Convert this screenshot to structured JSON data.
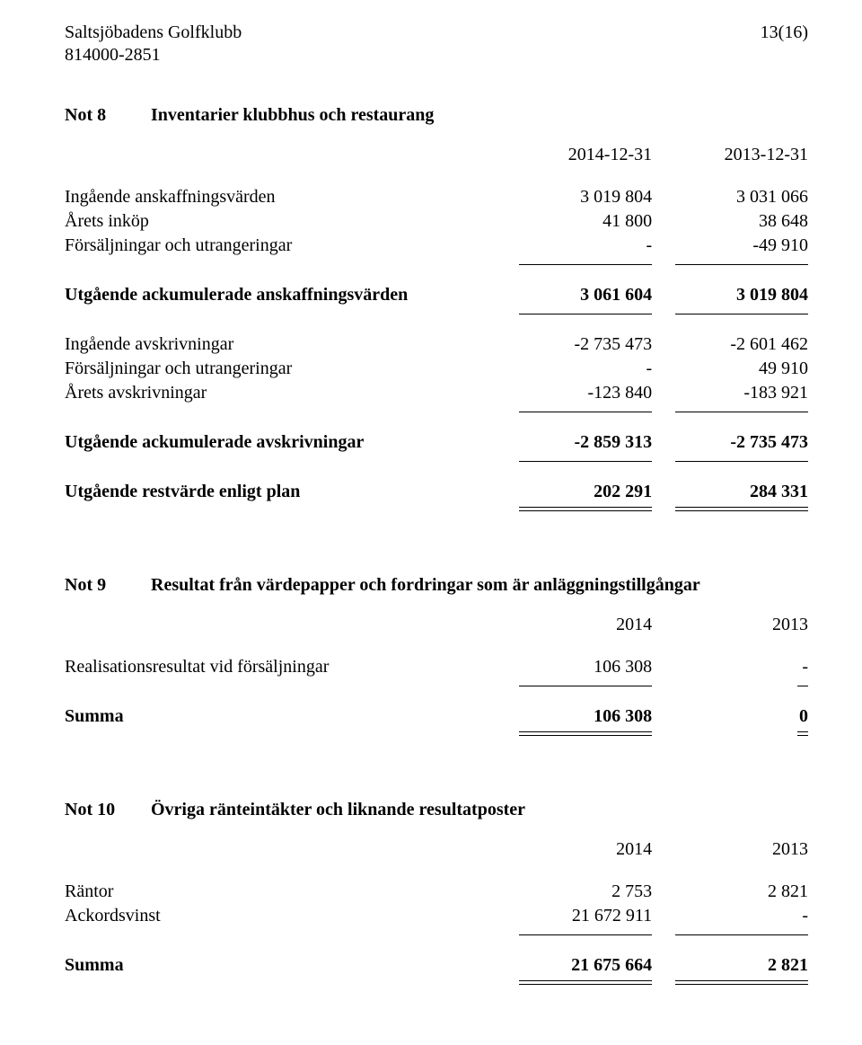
{
  "header": {
    "org_name": "Saltsjöbadens Golfklubb",
    "org_number": "814000-2851",
    "page_indicator": "13(16)"
  },
  "note8": {
    "num": "Not 8",
    "title": "Inventarier klubbhus och restaurang",
    "col1": "2014-12-31",
    "col2": "2013-12-31",
    "rows": {
      "r1_label": "Ingående anskaffningsvärden",
      "r1_c1": "3 019 804",
      "r1_c2": "3 031 066",
      "r2_label": "Årets inköp",
      "r2_c1": "41 800",
      "r2_c2": "38 648",
      "r3_label": "Försäljningar och utrangeringar",
      "r3_c1": "-",
      "r3_c2": "-49 910",
      "r4_label": "Utgående ackumulerade anskaffningsvärden",
      "r4_c1": "3 061 604",
      "r4_c2": "3 019 804",
      "r5_label": "Ingående avskrivningar",
      "r5_c1": "-2 735 473",
      "r5_c2": "-2 601 462",
      "r6_label": "Försäljningar och utrangeringar",
      "r6_c1": "-",
      "r6_c2": "49 910",
      "r7_label": "Årets avskrivningar",
      "r7_c1": "-123 840",
      "r7_c2": "-183 921",
      "r8_label": "Utgående ackumulerade avskrivningar",
      "r8_c1": "-2 859 313",
      "r8_c2": "-2 735 473",
      "r9_label": "Utgående restvärde enligt plan",
      "r9_c1": "202 291",
      "r9_c2": "284 331"
    }
  },
  "note9": {
    "num": "Not 9",
    "title": "Resultat från värdepapper och fordringar som är anläggningstillgångar",
    "col1": "2014",
    "col2": "2013",
    "rows": {
      "r1_label": "Realisationsresultat vid försäljningar",
      "r1_c1": "106 308",
      "r1_c2": "-",
      "r2_label": "Summa",
      "r2_c1": "106 308",
      "r2_c2": "0"
    }
  },
  "note10": {
    "num": "Not 10",
    "title": "Övriga ränteintäkter och liknande resultatposter",
    "col1": "2014",
    "col2": "2013",
    "rows": {
      "r1_label": "Räntor",
      "r1_c1": "2 753",
      "r1_c2": "2 821",
      "r2_label": "Ackordsvinst",
      "r2_c1": "21 672 911",
      "r2_c2": "-",
      "r3_label": "Summa",
      "r3_c1": "21 675 664",
      "r3_c2": "2 821"
    }
  }
}
